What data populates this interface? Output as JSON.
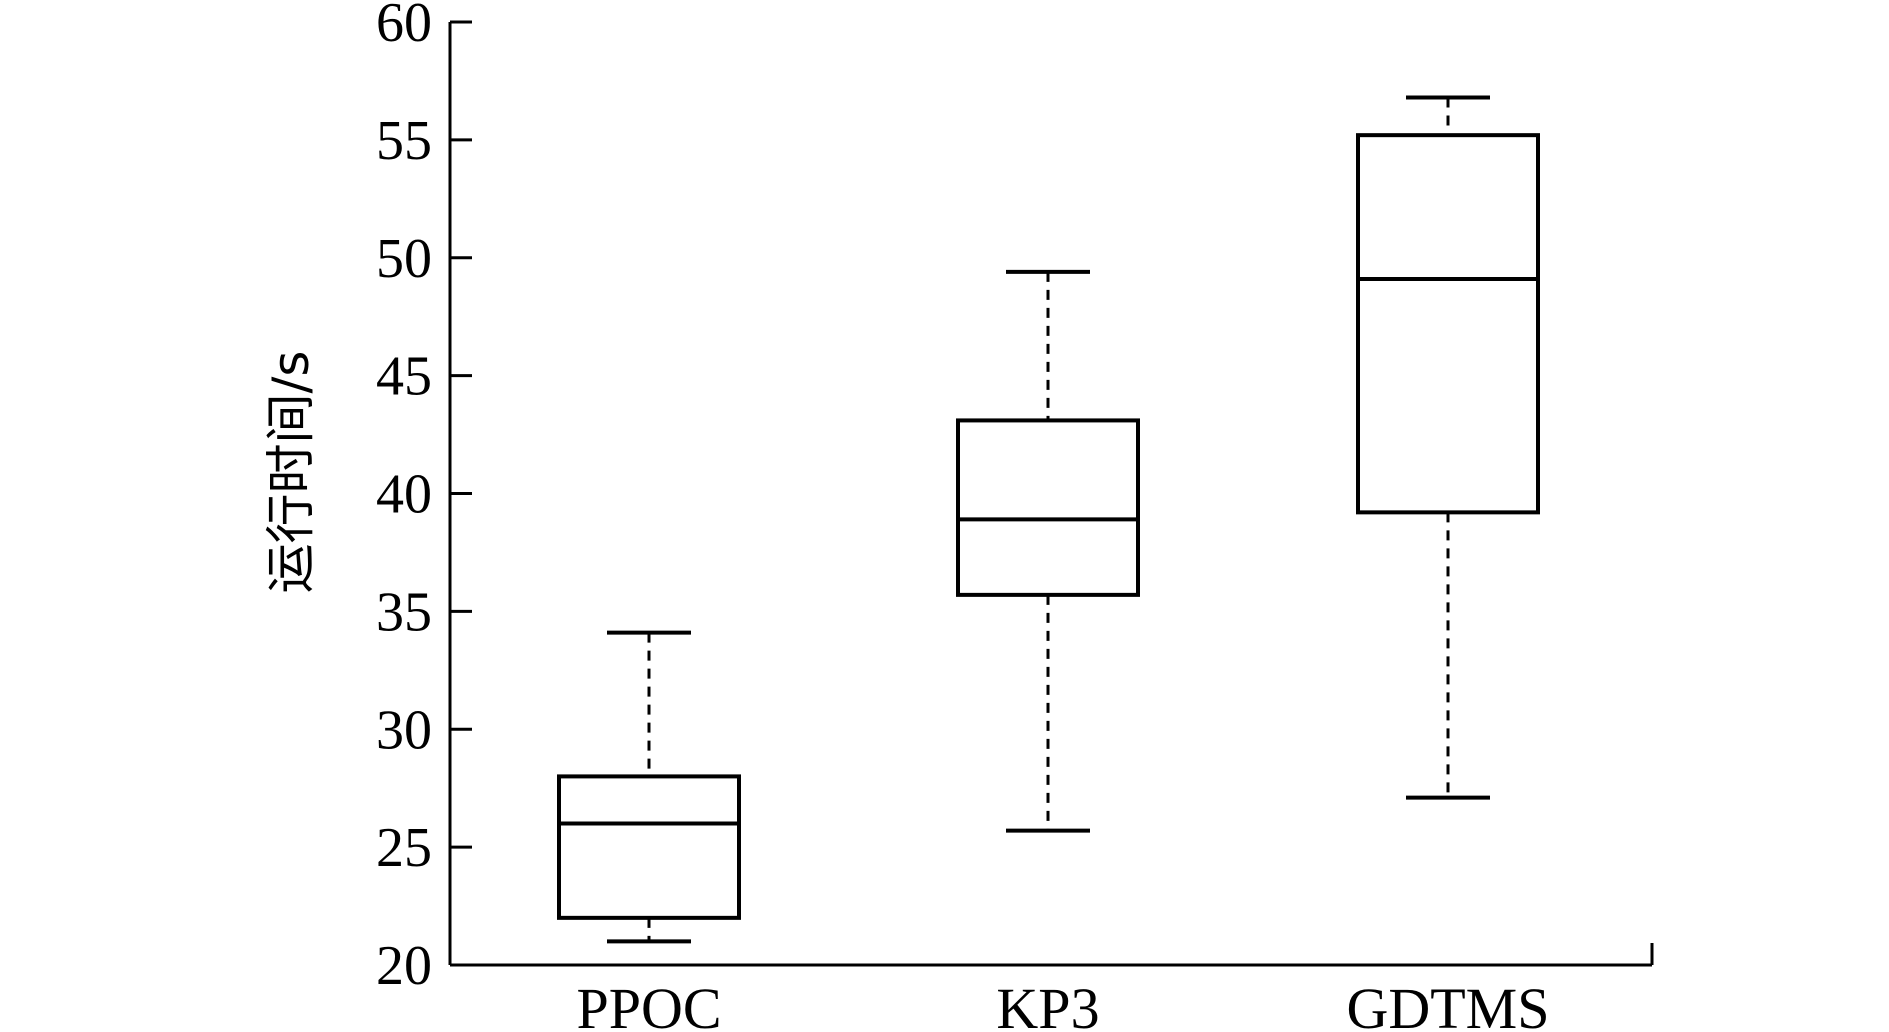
{
  "chart_data": {
    "type": "box",
    "title": "",
    "xlabel": "",
    "ylabel": "运行时间/s",
    "ylim": [
      20,
      60
    ],
    "yticks": [
      "20",
      "25",
      "30",
      "35",
      "40",
      "45",
      "50",
      "55",
      "60"
    ],
    "grid": false,
    "categories": [
      "PPOC",
      "KP3",
      "GDTMS"
    ],
    "boxes": [
      {
        "category": "PPOC",
        "min": 21.0,
        "q1": 22.0,
        "median": 26.0,
        "q3": 28.0,
        "max": 34.1
      },
      {
        "category": "KP3",
        "min": 25.7,
        "q1": 35.7,
        "median": 38.9,
        "q3": 43.1,
        "max": 49.4
      },
      {
        "category": "GDTMS",
        "min": 27.1,
        "q1": 39.2,
        "median": 49.1,
        "q3": 55.2,
        "max": 56.8
      }
    ],
    "colors": {
      "stroke": "#000000",
      "fill": "#ffffff"
    }
  }
}
